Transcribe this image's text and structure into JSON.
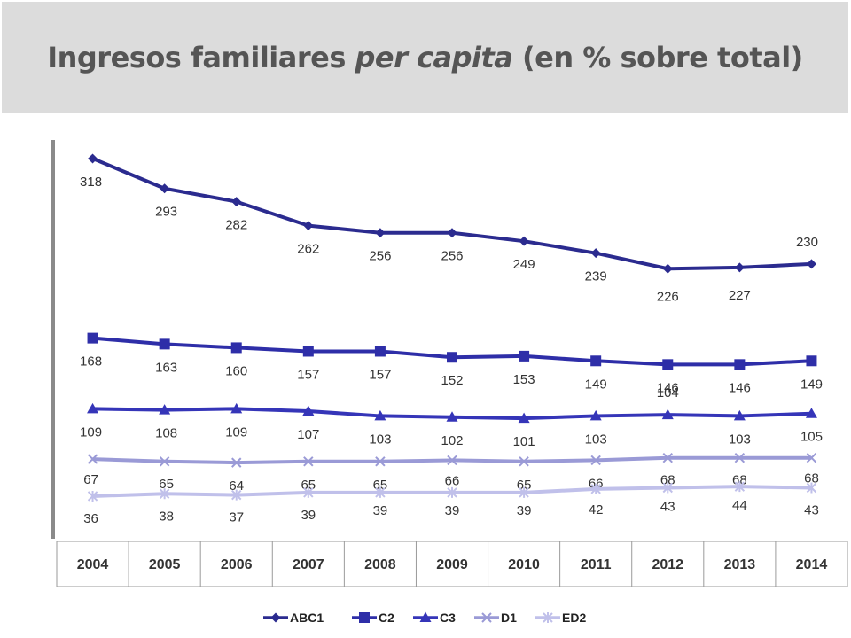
{
  "header": {
    "title_pre": "Ingresos familiares ",
    "title_em": "per capita",
    "title_post": " (en % sobre total)"
  },
  "chart_data": {
    "type": "line",
    "title": "Ingresos familiares per capita (en % sobre total)",
    "categories": [
      "2004",
      "2005",
      "2006",
      "2007",
      "2008",
      "2009",
      "2010",
      "2011",
      "2012",
      "2013",
      "2014"
    ],
    "ylim": [
      0,
      340
    ],
    "grid": false,
    "legend_position": "bottom",
    "series": [
      {
        "name": "ABC1",
        "marker": "diamond",
        "color": "#2b2b8f",
        "values": [
          318,
          293,
          282,
          262,
          256,
          256,
          249,
          239,
          226,
          227,
          230
        ]
      },
      {
        "name": "C2",
        "marker": "square",
        "color": "#2e2ea8",
        "values": [
          168,
          163,
          160,
          157,
          157,
          152,
          153,
          149,
          146,
          146,
          149
        ]
      },
      {
        "name": "C3",
        "marker": "triangle",
        "color": "#3535b8",
        "values": [
          109,
          108,
          109,
          107,
          103,
          102,
          101,
          103,
          104,
          103,
          105
        ]
      },
      {
        "name": "D1",
        "marker": "x",
        "color": "#9a9ad6",
        "values": [
          67,
          65,
          64,
          65,
          65,
          66,
          65,
          66,
          68,
          68,
          68
        ]
      },
      {
        "name": "ED2",
        "marker": "star",
        "color": "#c0c0ea",
        "values": [
          36,
          38,
          37,
          39,
          39,
          39,
          39,
          42,
          43,
          44,
          43
        ]
      }
    ]
  }
}
